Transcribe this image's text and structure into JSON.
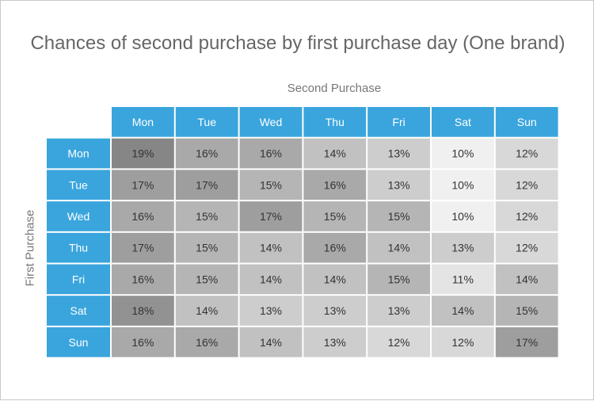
{
  "chart_data": {
    "type": "heatmap",
    "title": "Chances of second purchase by first purchase day (One brand)",
    "xlabel": "Second Purchase",
    "ylabel": "First Purchase",
    "x_categories": [
      "Mon",
      "Tue",
      "Wed",
      "Thu",
      "Fri",
      "Sat",
      "Sun"
    ],
    "y_categories": [
      "Mon",
      "Tue",
      "Wed",
      "Thu",
      "Fri",
      "Sat",
      "Sun"
    ],
    "values": [
      [
        19,
        16,
        16,
        14,
        13,
        10,
        12
      ],
      [
        17,
        17,
        15,
        16,
        13,
        10,
        12
      ],
      [
        16,
        15,
        17,
        15,
        15,
        10,
        12
      ],
      [
        17,
        15,
        14,
        16,
        14,
        13,
        12
      ],
      [
        16,
        15,
        14,
        14,
        15,
        11,
        14
      ],
      [
        18,
        14,
        13,
        13,
        13,
        14,
        15
      ],
      [
        16,
        16,
        14,
        13,
        12,
        12,
        17
      ]
    ],
    "value_format": "percent",
    "header_color": "#3aa5dd",
    "header_text_color": "#ffffff",
    "cell_text_color": "#333333",
    "color_scale": {
      "low": "#f0f0f0",
      "high": "#868686"
    }
  }
}
